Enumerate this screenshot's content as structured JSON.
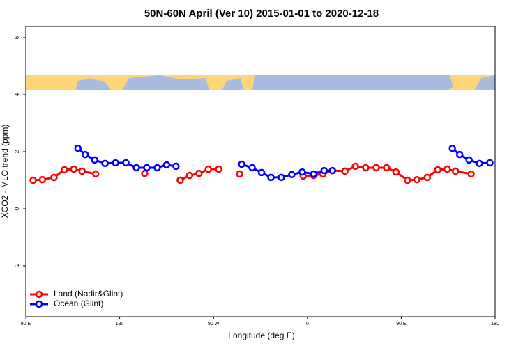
{
  "chart_data": {
    "type": "line",
    "title": "50N-60N April (Ver 10)   2015-01-01 to 2020-12-18",
    "xlabel": "Longitude (deg E)",
    "ylabel": "XCO2 - MLO trend (ppm)",
    "xlim": [
      90,
      540
    ],
    "ylim": [
      -3.78,
      6.39
    ],
    "xticks": [
      {
        "value": 90,
        "label": "90 E"
      },
      180,
      {
        "value": 270,
        "label": "90 W"
      },
      {
        "value": 360,
        "label": "0"
      },
      {
        "value": 450,
        "label": "90 E"
      },
      {
        "value": 540,
        "label": "180"
      }
    ],
    "yticks": [
      -2,
      0,
      2,
      4,
      6
    ],
    "grid": false,
    "legend": "bottom-left",
    "series": [
      {
        "name": "Land (Nadir&Glint)",
        "color": "#ff0000",
        "x": [
          97,
          106,
          117,
          127,
          136,
          144,
          157,
          null,
          204,
          null,
          238,
          247,
          256,
          265,
          275,
          null,
          295,
          null,
          356,
          366,
          375,
          384,
          396,
          406,
          416,
          426,
          436,
          445,
          456,
          465,
          475,
          485,
          494,
          502,
          517
        ],
        "values": [
          1.0,
          1.02,
          1.1,
          1.37,
          1.39,
          1.32,
          1.22,
          null,
          1.24,
          null,
          1.0,
          1.17,
          1.24,
          1.39,
          1.39,
          null,
          1.22,
          null,
          1.15,
          1.17,
          1.22,
          1.34,
          1.32,
          1.49,
          1.44,
          1.44,
          1.44,
          1.29,
          1.0,
          1.02,
          1.1,
          1.37,
          1.39,
          1.32,
          1.22
        ]
      },
      {
        "name": "Ocean (Glint)",
        "color": "#0000ff",
        "x": [
          140,
          147,
          156,
          166,
          176,
          186,
          196,
          206,
          216,
          225,
          234,
          null,
          297,
          307,
          316,
          325,
          335,
          345,
          355,
          366,
          376,
          384,
          null,
          499,
          506,
          515,
          525,
          535
        ],
        "values": [
          2.12,
          1.9,
          1.71,
          1.59,
          1.61,
          1.61,
          1.44,
          1.44,
          1.44,
          1.54,
          1.49,
          null,
          1.56,
          1.44,
          1.27,
          1.1,
          1.1,
          1.2,
          1.29,
          1.22,
          1.34,
          1.34,
          null,
          2.12,
          1.9,
          1.71,
          1.59,
          1.61
        ]
      }
    ]
  }
}
